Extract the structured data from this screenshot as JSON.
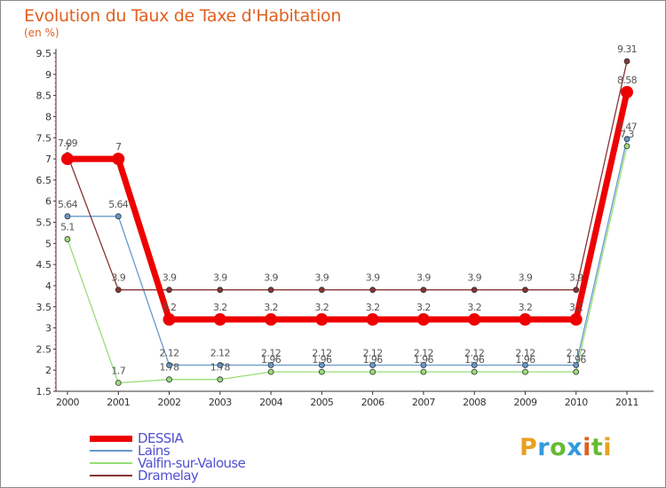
{
  "chart_data": {
    "type": "line",
    "title": "Evolution du Taux de Taxe d'Habitation",
    "subtitle": "(en %)",
    "x": [
      "2000",
      "2001",
      "2002",
      "2003",
      "2004",
      "2005",
      "2006",
      "2007",
      "2008",
      "2009",
      "2010",
      "2011"
    ],
    "ylim": [
      1.5,
      9.5
    ],
    "yticks": [
      "1.5",
      "2",
      "2.5",
      "3",
      "3.5",
      "4",
      "4.5",
      "5",
      "5.5",
      "6",
      "6.5",
      "7",
      "7.5",
      "8",
      "8.5",
      "9",
      "9.5"
    ],
    "grid": false,
    "legend_position": "bottom-left",
    "series": [
      {
        "name": "DESSIA",
        "color": "#ee0000",
        "width": 7,
        "marker": 7,
        "values": [
          7,
          7,
          3.2,
          3.2,
          3.2,
          3.2,
          3.2,
          3.2,
          3.2,
          3.2,
          3.2,
          8.58
        ],
        "labels": [
          "7",
          "7",
          "3.2",
          "3.2",
          "3.2",
          "3.2",
          "3.2",
          "3.2",
          "3.2",
          "3.2",
          "3.2",
          "8.58"
        ]
      },
      {
        "name": "Lains",
        "color": "#6699cc",
        "width": 1.3,
        "marker": 3,
        "values": [
          5.64,
          5.64,
          2.12,
          2.12,
          2.12,
          2.12,
          2.12,
          2.12,
          2.12,
          2.12,
          2.12,
          7.47
        ],
        "labels": [
          "5.64",
          "5.64",
          "2.12",
          "2.12",
          "2.12",
          "2.12",
          "2.12",
          "2.12",
          "2.12",
          "2.12",
          "2.12",
          "7.47"
        ]
      },
      {
        "name": "Valfin-sur-Valouse",
        "color": "#99dd77",
        "width": 1.3,
        "marker": 3,
        "values": [
          5.1,
          1.7,
          1.78,
          1.78,
          1.96,
          1.96,
          1.96,
          1.96,
          1.96,
          1.96,
          1.96,
          7.3
        ],
        "labels": [
          "5.1",
          "1.7",
          "1.78",
          "1.78",
          "1.96",
          "1.96",
          "1.96",
          "1.96",
          "1.96",
          "1.96",
          "1.96",
          "7.3"
        ]
      },
      {
        "name": "Dramelay",
        "color": "#883333",
        "width": 1.3,
        "marker": 3,
        "values": [
          7.09,
          3.9,
          3.9,
          3.9,
          3.9,
          3.9,
          3.9,
          3.9,
          3.9,
          3.9,
          3.9,
          9.31
        ],
        "labels": [
          "7.09",
          "3.9",
          "3.9",
          "3.9",
          "3.9",
          "3.9",
          "3.9",
          "3.9",
          "3.9",
          "3.9",
          "3.9",
          "9.31"
        ]
      }
    ]
  },
  "logo": {
    "letters": [
      "P",
      "r",
      "o",
      "x",
      "i",
      "t",
      "i"
    ],
    "colors": [
      "#e8a020",
      "#3399dd",
      "#66bb33",
      "#3399dd",
      "#e06020",
      "#66bb33",
      "#e8a020"
    ]
  }
}
